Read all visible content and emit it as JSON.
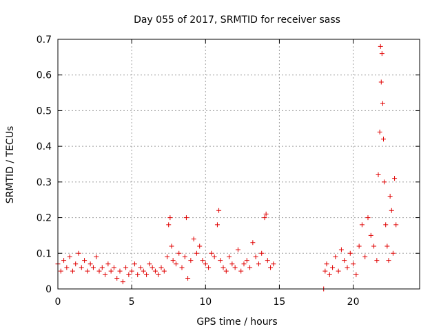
{
  "chart_data": {
    "type": "scatter",
    "title": "Day 055 of 2017, SRMTID for receiver sass",
    "xlabel": "GPS time / hours",
    "ylabel": "SRMTID / TECUs",
    "xlim": [
      0,
      24.5
    ],
    "ylim": [
      0,
      0.7
    ],
    "x_ticks": [
      0,
      5,
      10,
      15,
      20
    ],
    "x_tick_labels": [
      "0",
      "5",
      "10",
      "15",
      "20"
    ],
    "y_ticks": [
      0,
      0.1,
      0.2,
      0.3,
      0.4,
      0.5,
      0.6,
      0.7
    ],
    "y_tick_labels": [
      "0",
      "0.1",
      "0.2",
      "0.3",
      "0.4",
      "0.5",
      "0.6",
      "0.7"
    ],
    "grid": true,
    "marker": "plus",
    "color": "#e00000",
    "series": [
      {
        "name": "SRMTID",
        "x": [
          0.0,
          0.2,
          0.4,
          0.6,
          0.8,
          1.0,
          1.2,
          1.4,
          1.6,
          1.8,
          2.0,
          2.2,
          2.4,
          2.6,
          2.8,
          3.0,
          3.2,
          3.4,
          3.6,
          3.8,
          4.0,
          4.2,
          4.4,
          4.6,
          4.8,
          5.0,
          5.2,
          5.4,
          5.6,
          5.8,
          6.0,
          6.2,
          6.4,
          6.6,
          6.8,
          7.0,
          7.2,
          7.4,
          7.5,
          7.6,
          7.7,
          7.8,
          8.0,
          8.2,
          8.4,
          8.6,
          8.7,
          8.8,
          9.0,
          9.2,
          9.4,
          9.6,
          9.8,
          10.0,
          10.2,
          10.4,
          10.6,
          10.8,
          10.9,
          11.0,
          11.2,
          11.4,
          11.6,
          11.8,
          12.0,
          12.2,
          12.4,
          12.6,
          12.8,
          13.0,
          13.2,
          13.4,
          13.6,
          13.8,
          14.0,
          14.1,
          14.2,
          14.4,
          14.6,
          18.0,
          18.1,
          18.2,
          18.4,
          18.6,
          18.8,
          19.0,
          19.2,
          19.4,
          19.6,
          19.8,
          20.0,
          20.2,
          20.4,
          20.6,
          20.8,
          21.0,
          21.2,
          21.4,
          21.6,
          21.7,
          21.8,
          21.85,
          21.9,
          21.95,
          22.0,
          22.05,
          22.1,
          22.2,
          22.3,
          22.4,
          22.5,
          22.6,
          22.7,
          22.8,
          22.9
        ],
        "y": [
          0.07,
          0.05,
          0.08,
          0.06,
          0.09,
          0.05,
          0.07,
          0.1,
          0.06,
          0.08,
          0.05,
          0.07,
          0.06,
          0.09,
          0.05,
          0.06,
          0.04,
          0.07,
          0.05,
          0.06,
          0.03,
          0.05,
          0.02,
          0.06,
          0.04,
          0.05,
          0.07,
          0.04,
          0.06,
          0.05,
          0.04,
          0.07,
          0.06,
          0.05,
          0.04,
          0.06,
          0.05,
          0.09,
          0.18,
          0.2,
          0.12,
          0.08,
          0.07,
          0.1,
          0.06,
          0.09,
          0.2,
          0.03,
          0.08,
          0.14,
          0.1,
          0.12,
          0.08,
          0.07,
          0.06,
          0.1,
          0.09,
          0.18,
          0.22,
          0.08,
          0.06,
          0.05,
          0.09,
          0.07,
          0.06,
          0.11,
          0.05,
          0.07,
          0.08,
          0.06,
          0.13,
          0.09,
          0.07,
          0.1,
          0.2,
          0.21,
          0.08,
          0.06,
          0.07,
          0.0,
          0.05,
          0.07,
          0.04,
          0.06,
          0.09,
          0.05,
          0.11,
          0.08,
          0.06,
          0.1,
          0.07,
          0.04,
          0.12,
          0.18,
          0.09,
          0.2,
          0.15,
          0.12,
          0.08,
          0.32,
          0.44,
          0.68,
          0.58,
          0.66,
          0.52,
          0.42,
          0.3,
          0.18,
          0.12,
          0.08,
          0.26,
          0.22,
          0.1,
          0.31,
          0.18
        ]
      }
    ]
  }
}
